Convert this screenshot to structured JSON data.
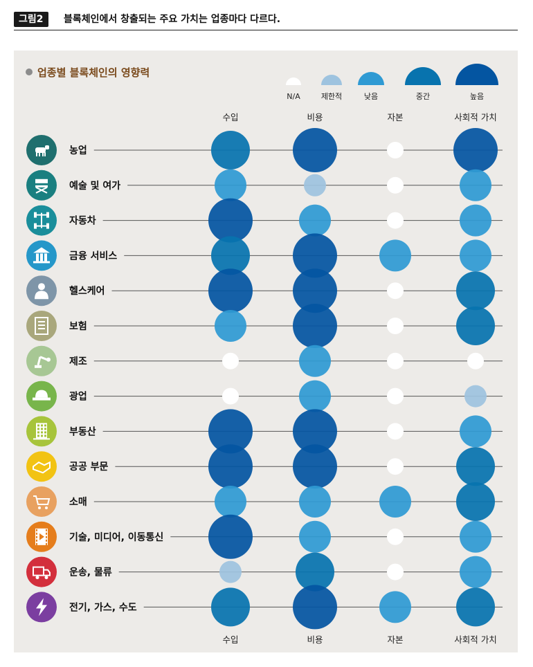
{
  "header": {
    "figure_tag": "그림2",
    "title": "블록체인에서 창출되는 주요 가치는 업종마다 다르다."
  },
  "chart_data": {
    "type": "bubble-matrix",
    "title": "업종별 블록체인의 영향력",
    "legend": [
      {
        "level": 0,
        "label": "N/A"
      },
      {
        "level": 1,
        "label": "제한적"
      },
      {
        "level": 2,
        "label": "낮음"
      },
      {
        "level": 3,
        "label": "중간"
      },
      {
        "level": 4,
        "label": "높음"
      }
    ],
    "columns": [
      "수입",
      "비용",
      "자본",
      "사회적 가치"
    ],
    "rows": [
      {
        "name": "농업",
        "icon": "cow-icon",
        "values": [
          3,
          4,
          0,
          4
        ]
      },
      {
        "name": "예술 및 여가",
        "icon": "director-chair-icon",
        "values": [
          2,
          1,
          0,
          2
        ]
      },
      {
        "name": "자동차",
        "icon": "car-chassis-icon",
        "values": [
          4,
          2,
          0,
          2
        ]
      },
      {
        "name": "금융 서비스",
        "icon": "bank-icon",
        "values": [
          3,
          4,
          2,
          2
        ]
      },
      {
        "name": "헬스케어",
        "icon": "doctor-icon",
        "values": [
          4,
          4,
          0,
          3
        ]
      },
      {
        "name": "보험",
        "icon": "document-icon",
        "values": [
          2,
          4,
          0,
          3
        ]
      },
      {
        "name": "제조",
        "icon": "robot-arm-icon",
        "values": [
          0,
          2,
          0,
          0
        ]
      },
      {
        "name": "광업",
        "icon": "hard-hat-icon",
        "values": [
          0,
          2,
          0,
          1
        ]
      },
      {
        "name": "부동산",
        "icon": "building-icon",
        "values": [
          4,
          4,
          0,
          2
        ]
      },
      {
        "name": "공공 부문",
        "icon": "handshake-icon",
        "values": [
          4,
          4,
          0,
          3
        ]
      },
      {
        "name": "소매",
        "icon": "shopping-cart-icon",
        "values": [
          2,
          2,
          2,
          3
        ]
      },
      {
        "name": "기술, 미디어, 이동통신",
        "icon": "film-icon",
        "values": [
          4,
          2,
          0,
          2
        ]
      },
      {
        "name": "운송, 물류",
        "icon": "truck-icon",
        "values": [
          1,
          3,
          0,
          2
        ]
      },
      {
        "name": "전기, 가스, 수도",
        "icon": "lightning-icon",
        "values": [
          3,
          4,
          2,
          3
        ]
      }
    ],
    "level_colors": [
      "#ffffff",
      "#9ec3df",
      "#2f9ad3",
      "#0873ae",
      "#0455a1"
    ],
    "icon_colors": [
      "#1f6f6e",
      "#1a7f80",
      "#1a8e9b",
      "#2597c9",
      "#7e95a8",
      "#a9a77c",
      "#a7c794",
      "#78b54b",
      "#a7c43b",
      "#f2c313",
      "#e8a160",
      "#e57d1c",
      "#d32f3c",
      "#7b3ea0"
    ]
  }
}
